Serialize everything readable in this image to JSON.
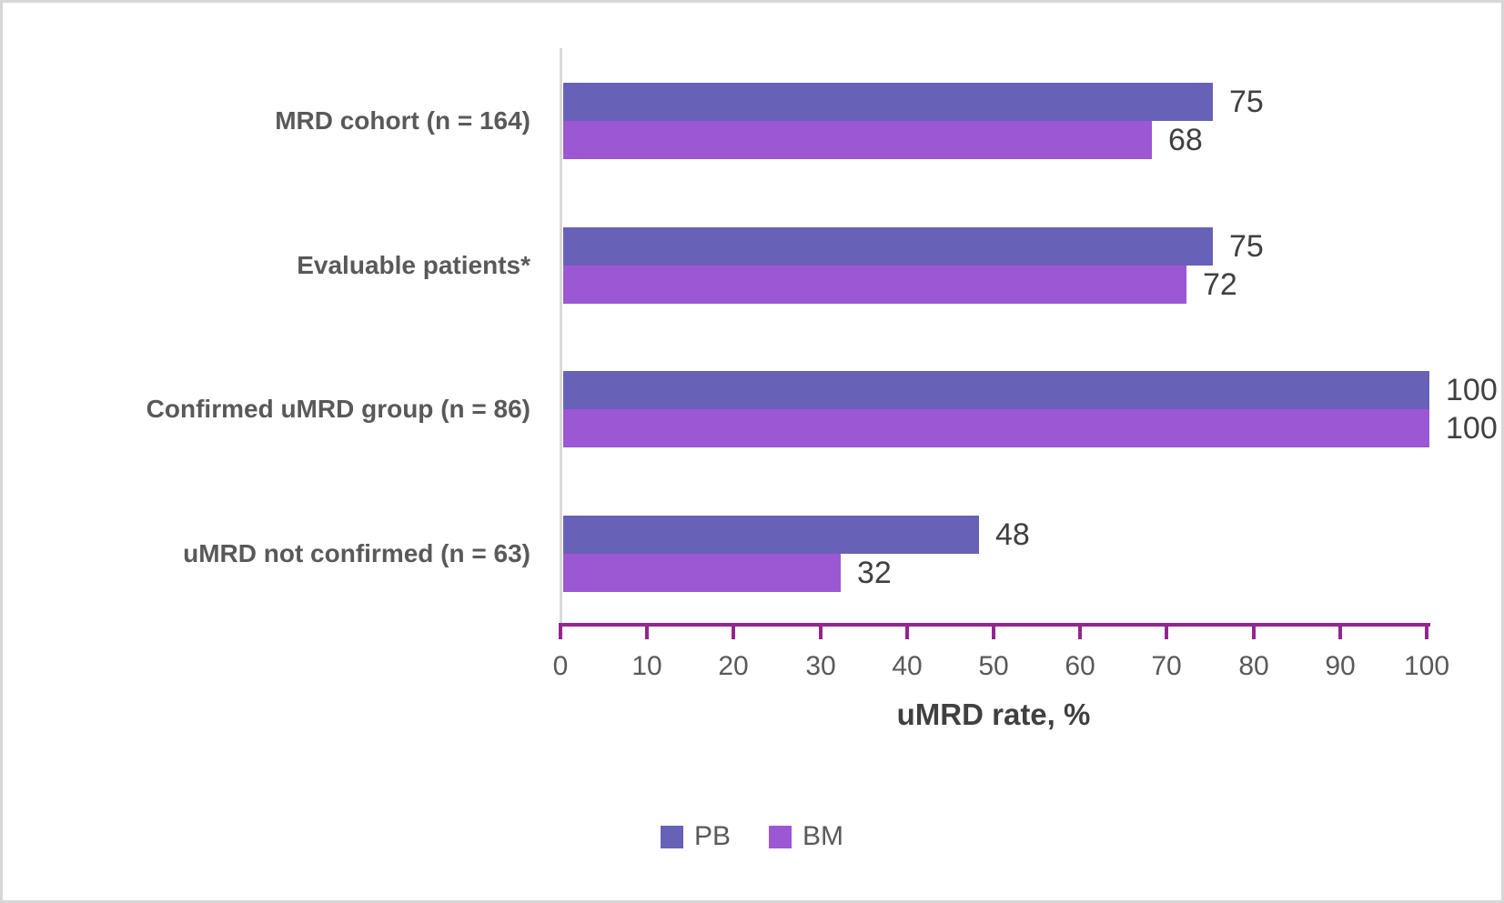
{
  "chart_data": {
    "type": "bar",
    "orientation": "horizontal",
    "title": "",
    "categories": [
      "MRD cohort (n = 164)",
      "Evaluable patients*",
      "Confirmed uMRD group (n = 86)",
      "uMRD not confirmed (n = 63)"
    ],
    "series": [
      {
        "name": "PB",
        "color": "#6761B7",
        "values": [
          75,
          75,
          100,
          48
        ]
      },
      {
        "name": "BM",
        "color": "#9C58D3",
        "values": [
          68,
          72,
          100,
          32
        ]
      }
    ],
    "xlabel": "uMRD rate, %",
    "xlim": [
      0,
      100
    ],
    "xticks": [
      0,
      10,
      20,
      30,
      40,
      50,
      60,
      70,
      80,
      90,
      100
    ],
    "grid": false,
    "legend_position": "bottom",
    "data_labels": true,
    "colors": {
      "axis": "#93268F",
      "baseline": "#D9D9D9",
      "tick_label": "#595959",
      "category_label": "#595959",
      "value_label": "#404040",
      "frame_border": "#D7D7D7",
      "background": "#FFFFFF"
    }
  }
}
